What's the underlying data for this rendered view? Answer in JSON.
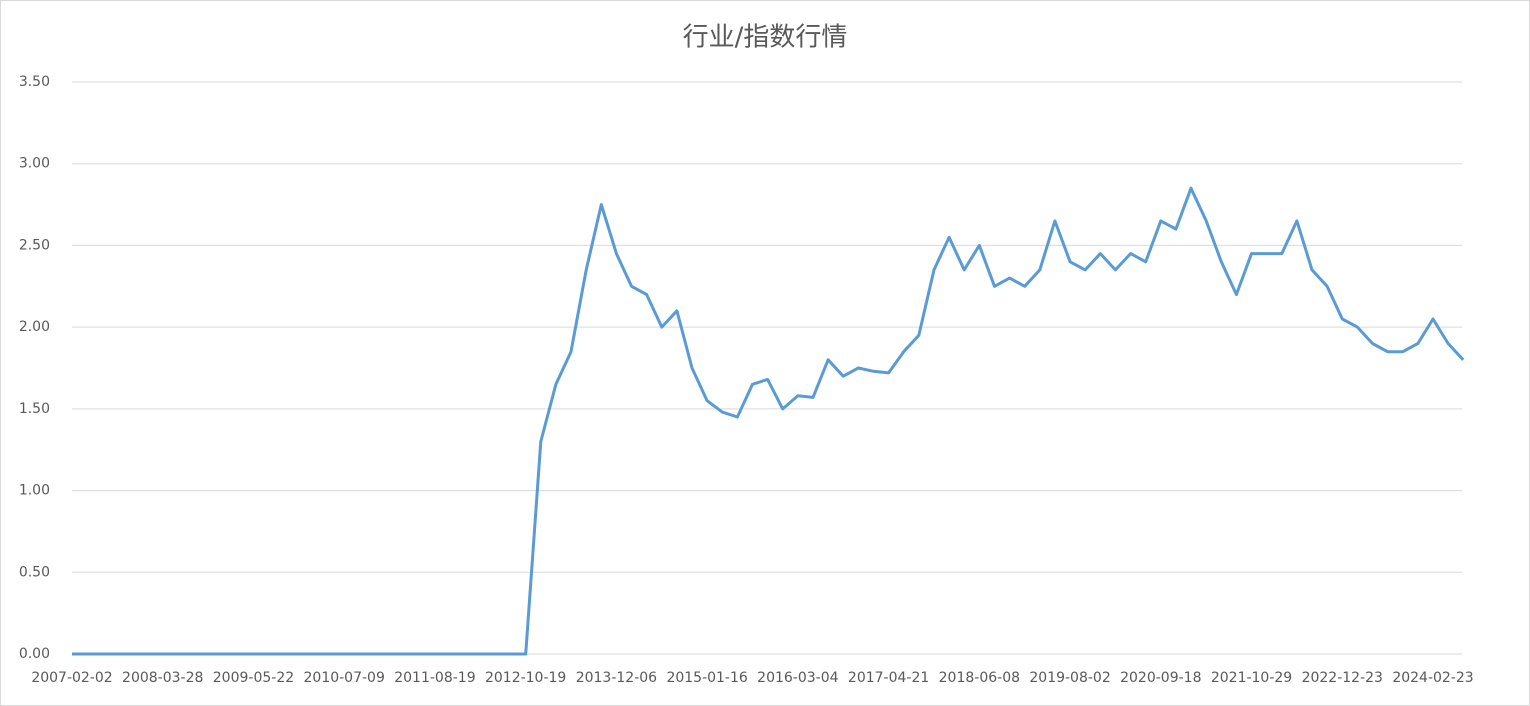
{
  "chart_data": {
    "type": "line",
    "title": "行业/指数行情",
    "color": "#5b9bd5",
    "grid": true,
    "ylim": [
      0,
      3.5
    ],
    "yticks": [
      {
        "value": 0,
        "label": "0.00"
      },
      {
        "value": 0.5,
        "label": "0.50"
      },
      {
        "value": 1,
        "label": "1.00"
      },
      {
        "value": 1.5,
        "label": "1.50"
      },
      {
        "value": 2,
        "label": "2.00"
      },
      {
        "value": 2.5,
        "label": "2.50"
      },
      {
        "value": 3,
        "label": "3.00"
      },
      {
        "value": 3.5,
        "label": "3.50"
      }
    ],
    "categories": [
      "2007-02-02",
      null,
      null,
      null,
      null,
      null,
      "2008-03-28",
      null,
      null,
      null,
      null,
      null,
      "2009-05-22",
      null,
      null,
      null,
      null,
      null,
      "2010-07-09",
      null,
      null,
      null,
      null,
      null,
      "2011-08-19",
      null,
      null,
      null,
      null,
      null,
      "2012-10-19",
      null,
      null,
      null,
      null,
      null,
      "2013-12-06",
      null,
      null,
      null,
      null,
      null,
      "2015-01-16",
      null,
      null,
      null,
      null,
      null,
      "2016-03-04",
      null,
      null,
      null,
      null,
      null,
      "2017-04-21",
      null,
      null,
      null,
      null,
      null,
      "2018-06-08",
      null,
      null,
      null,
      null,
      null,
      "2019-08-02",
      null,
      null,
      null,
      null,
      null,
      "2020-09-18",
      null,
      null,
      null,
      null,
      null,
      "2021-10-29",
      null,
      null,
      null,
      null,
      null,
      "2022-12-23",
      null,
      null,
      null,
      null,
      null,
      "2024-02-23",
      null,
      null
    ],
    "values": [
      0,
      0,
      0,
      0,
      0,
      0,
      0,
      0,
      0,
      0,
      0,
      0,
      0,
      0,
      0,
      0,
      0,
      0,
      0,
      0,
      0,
      0,
      0,
      0,
      0,
      0,
      0,
      0,
      0,
      0,
      0,
      1.3,
      1.65,
      1.85,
      2.35,
      2.75,
      2.45,
      2.25,
      2.2,
      2.0,
      2.1,
      1.75,
      1.55,
      1.48,
      1.45,
      1.65,
      1.68,
      1.5,
      1.58,
      1.57,
      1.8,
      1.7,
      1.75,
      1.73,
      1.72,
      1.85,
      1.95,
      2.35,
      2.55,
      2.35,
      2.5,
      2.25,
      2.3,
      2.25,
      2.35,
      2.65,
      2.4,
      2.35,
      2.45,
      2.35,
      2.45,
      2.4,
      2.65,
      2.6,
      2.85,
      2.65,
      2.4,
      2.2,
      2.45,
      2.45,
      2.45,
      2.65,
      2.35,
      2.25,
      2.05,
      2.0,
      1.9,
      1.85,
      1.85,
      1.9,
      2.05,
      1.9,
      1.8
    ]
  }
}
